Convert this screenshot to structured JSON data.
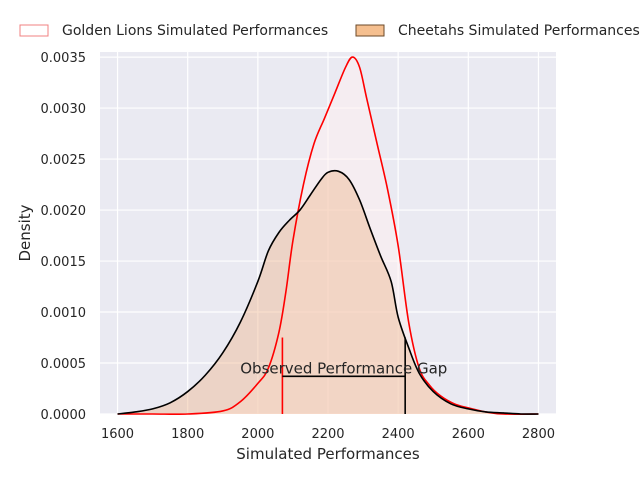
{
  "chart_data": {
    "type": "area",
    "title": "",
    "xlabel": "Simulated Performances",
    "ylabel": "Density",
    "xlim": [
      1550,
      2850
    ],
    "ylim": [
      0,
      0.00355
    ],
    "x_ticks": [
      1600,
      1800,
      2000,
      2200,
      2400,
      2600,
      2800
    ],
    "y_ticks": [
      0.0,
      0.0005,
      0.001,
      0.0015,
      0.002,
      0.0025,
      0.003,
      0.0035
    ],
    "x_tick_labels": [
      "1600",
      "1800",
      "2000",
      "2200",
      "2400",
      "2600",
      "2800"
    ],
    "y_tick_labels": [
      "0.0000",
      "0.0005",
      "0.0010",
      "0.0015",
      "0.0020",
      "0.0025",
      "0.0030",
      "0.0035"
    ],
    "grid": true,
    "legend_position": "top",
    "series": [
      {
        "name": "Golden Lions Simulated Performances",
        "line_color": "#ff0000",
        "fill_color": "#fff0f0",
        "x": [
          1600,
          1700,
          1800,
          1900,
          1950,
          2000,
          2030,
          2060,
          2080,
          2100,
          2130,
          2160,
          2190,
          2220,
          2250,
          2270,
          2290,
          2310,
          2340,
          2370,
          2400,
          2430,
          2460,
          2490,
          2520,
          2560,
          2600,
          2650,
          2700,
          2800
        ],
        "y": [
          0.0,
          0.0,
          0.0,
          3e-05,
          0.00012,
          0.0003,
          0.00045,
          0.0008,
          0.0012,
          0.0017,
          0.00225,
          0.00265,
          0.0029,
          0.00315,
          0.0034,
          0.0035,
          0.0034,
          0.0031,
          0.00265,
          0.0022,
          0.00165,
          0.0009,
          0.00045,
          0.00028,
          0.00018,
          0.0001,
          6e-05,
          2e-05,
          0.0,
          0.0
        ]
      },
      {
        "name": "Cheetahs Simulated Performances",
        "line_color": "#000000",
        "fill_color": "#f0b890",
        "x": [
          1600,
          1650,
          1700,
          1750,
          1800,
          1850,
          1900,
          1950,
          2000,
          2030,
          2060,
          2090,
          2120,
          2150,
          2180,
          2200,
          2230,
          2260,
          2290,
          2320,
          2350,
          2380,
          2400,
          2430,
          2460,
          2500,
          2550,
          2600,
          2650,
          2700,
          2750,
          2800
        ],
        "y": [
          0.0,
          2e-05,
          5e-05,
          0.00011,
          0.00022,
          0.00038,
          0.0006,
          0.0009,
          0.0013,
          0.0016,
          0.00178,
          0.0019,
          0.002,
          0.00215,
          0.0023,
          0.00237,
          0.00238,
          0.0023,
          0.0021,
          0.00182,
          0.00155,
          0.0013,
          0.00095,
          0.00065,
          0.0004,
          0.00022,
          0.0001,
          5e-05,
          2e-05,
          1e-05,
          0.0,
          0.0
        ]
      }
    ],
    "annotations": [
      {
        "type": "vline",
        "x": 2070,
        "y_top": 0.00075,
        "color": "#ff0000"
      },
      {
        "type": "vline",
        "x": 2420,
        "y_top": 0.00075,
        "color": "#000000"
      },
      {
        "type": "hline",
        "x1": 2070,
        "x2": 2420,
        "y": 0.00037,
        "color": "#000000"
      },
      {
        "type": "text",
        "text": "Observed Performance Gap",
        "x": 2245,
        "y": 0.00037
      }
    ]
  }
}
